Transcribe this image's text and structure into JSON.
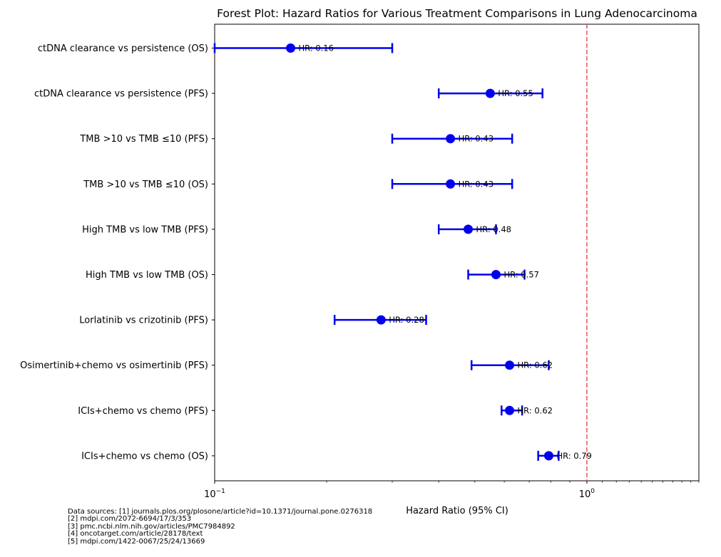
{
  "chart_data": {
    "type": "forest",
    "title": "Forest Plot: Hazard Ratios for Various Treatment Comparisons in Lung Adenocarcinoma",
    "xlabel": "Hazard Ratio (95% CI)",
    "xscale": "log",
    "xlim": [
      0.1,
      2.0
    ],
    "x_ticks": [
      {
        "value": 0.1,
        "base": "10",
        "exp": "−1"
      },
      {
        "value": 1.0,
        "base": "10",
        "exp": "0"
      }
    ],
    "reference_line": {
      "value": 1.0,
      "style": "dashed",
      "color": "#e8545a"
    },
    "marker_color": "#0000ee",
    "rows": [
      {
        "label": "ctDNA clearance vs persistence (OS)",
        "hr": 0.16,
        "lower": 0.1,
        "upper": 0.3,
        "hr_text": "HR: 0.16"
      },
      {
        "label": "ctDNA clearance vs persistence (PFS)",
        "hr": 0.55,
        "lower": 0.4,
        "upper": 0.76,
        "hr_text": "HR: 0.55"
      },
      {
        "label": "TMB >10 vs TMB ≤10 (PFS)",
        "hr": 0.43,
        "lower": 0.3,
        "upper": 0.63,
        "hr_text": "HR: 0.43"
      },
      {
        "label": "TMB >10 vs TMB ≤10 (OS)",
        "hr": 0.43,
        "lower": 0.3,
        "upper": 0.63,
        "hr_text": "HR: 0.43"
      },
      {
        "label": "High TMB vs low TMB (PFS)",
        "hr": 0.48,
        "lower": 0.4,
        "upper": 0.57,
        "hr_text": "HR: 0.48"
      },
      {
        "label": "High TMB vs low TMB (OS)",
        "hr": 0.57,
        "lower": 0.48,
        "upper": 0.68,
        "hr_text": "HR: 0.57"
      },
      {
        "label": "Lorlatinib vs crizotinib (PFS)",
        "hr": 0.28,
        "lower": 0.21,
        "upper": 0.37,
        "hr_text": "HR: 0.28"
      },
      {
        "label": "Osimertinib+chemo vs osimertinib (PFS)",
        "hr": 0.62,
        "lower": 0.49,
        "upper": 0.79,
        "hr_text": "HR: 0.62"
      },
      {
        "label": "ICIs+chemo vs chemo (PFS)",
        "hr": 0.62,
        "lower": 0.59,
        "upper": 0.67,
        "hr_text": "HR: 0.62"
      },
      {
        "label": "ICIs+chemo vs chemo (OS)",
        "hr": 0.79,
        "lower": 0.74,
        "upper": 0.84,
        "hr_text": "HR: 0.79"
      }
    ]
  },
  "sources": [
    "Data sources: [1] journals.plos.org/plosone/article?id=10.1371/journal.pone.0276318",
    "[2] mdpi.com/2072-6694/17/3/353",
    "[3] pmc.ncbi.nlm.nih.gov/articles/PMC7984892",
    "[4] oncotarget.com/article/28178/text",
    "[5] mdpi.com/1422-0067/25/24/13669"
  ]
}
